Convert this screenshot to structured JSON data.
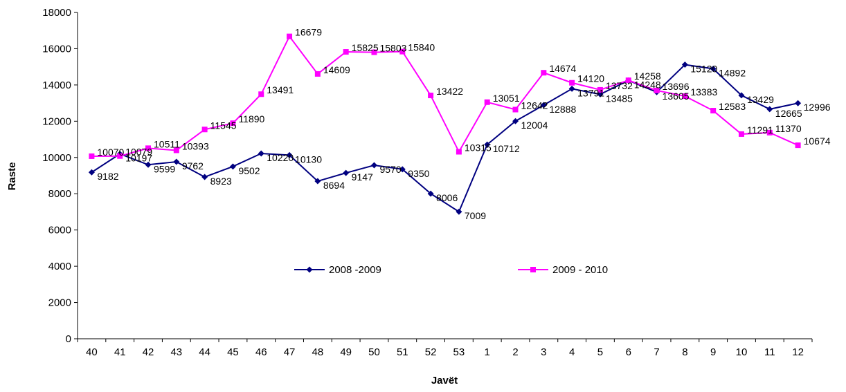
{
  "chart_data": {
    "type": "line",
    "title": "",
    "xlabel": "Javët",
    "ylabel": "Raste",
    "categories": [
      "40",
      "41",
      "42",
      "43",
      "44",
      "45",
      "46",
      "47",
      "48",
      "49",
      "50",
      "51",
      "52",
      "53",
      "1",
      "2",
      "3",
      "4",
      "5",
      "6",
      "7",
      "8",
      "9",
      "10",
      "11",
      "12"
    ],
    "ylim": [
      0,
      18000
    ],
    "yticks": [
      0,
      2000,
      4000,
      6000,
      8000,
      10000,
      12000,
      14000,
      16000,
      18000
    ],
    "grid": false,
    "legend_position": "bottom-center",
    "series": [
      {
        "name": "2008 -2009",
        "color": "#000080",
        "marker": "diamond",
        "values": [
          9182,
          10197,
          9599,
          9762,
          8923,
          9502,
          10220,
          10130,
          8694,
          9147,
          9570,
          9350,
          8006,
          7009,
          10712,
          12004,
          12888,
          13791,
          13485,
          14248,
          13605,
          15120,
          14892,
          13429,
          12665,
          12996
        ]
      },
      {
        "name": "2009 - 2010",
        "color": "#ff00ff",
        "marker": "square",
        "values": [
          10070,
          10079,
          10511,
          10393,
          11545,
          11890,
          13491,
          16679,
          14609,
          15825,
          15803,
          15840,
          13422,
          10315,
          13051,
          12642,
          14674,
          14120,
          13732,
          14258,
          13696,
          13383,
          12583,
          11291,
          11370,
          10674
        ]
      }
    ]
  }
}
